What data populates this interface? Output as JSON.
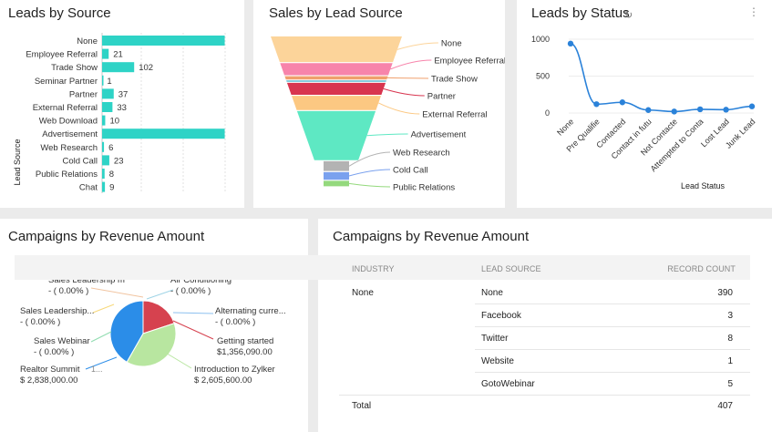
{
  "leads_by_source": {
    "title": "Leads by Source",
    "y_axis_label": "Lead Source",
    "chart_data": {
      "type": "bar",
      "orientation": "horizontal",
      "title": "Leads by Source",
      "ylabel": "Lead Source",
      "categories": [
        "None",
        "Employee Referral",
        "Trade Show",
        "Seminar Partner",
        "Partner",
        "External Referral",
        "Web Download",
        "Advertisement",
        "Web Research",
        "Cold Call",
        "Public Relations",
        "Chat"
      ],
      "values": [
        390,
        21,
        102,
        1,
        37,
        33,
        10,
        390,
        6,
        23,
        8,
        9
      ],
      "value_labels": [
        "",
        "21",
        "102",
        "1",
        "37",
        "33",
        "10",
        "",
        "6",
        "23",
        "8",
        "9"
      ],
      "xlim": [
        0,
        400
      ],
      "color": "#2ed3c6"
    }
  },
  "sales_by_lead_source": {
    "title": "Sales by Lead Source",
    "chart_data": {
      "type": "funnel",
      "title": "Sales by Lead Source",
      "categories": [
        "None",
        "Employee Referral",
        "Trade Show",
        "",
        "Partner",
        "External Referral",
        "Advertisement",
        "Web Research",
        "Cold Call",
        "Public Relations"
      ],
      "values": [
        12,
        6,
        2,
        1,
        6,
        7,
        23,
        5,
        4,
        3
      ],
      "colors": [
        "#fcd49a",
        "#f784ab",
        "#f0a06d",
        "#3fb0c9",
        "#d8354f",
        "#fcc882",
        "#5ee8c3",
        "#b3b3b3",
        "#7aa1ee",
        "#94d97d"
      ]
    }
  },
  "leads_by_status": {
    "title": "Leads by Status",
    "refresh_icon": "refresh-icon",
    "menu_icon": "more-vertical-icon",
    "x_axis_label": "Lead Status",
    "chart_data": {
      "type": "line",
      "title": "Leads by Status",
      "xlabel": "Lead Status",
      "x": [
        "None",
        "Pre Qualifie",
        "Contacted",
        "Contact in futu",
        "Not Contacte",
        "Attempted to Conta",
        "Lost Lead",
        "Junk Lead"
      ],
      "values": [
        940,
        120,
        145,
        40,
        20,
        50,
        45,
        90
      ],
      "y_ticks": [
        "1000",
        "500",
        "0"
      ],
      "ylim": [
        0,
        1000
      ],
      "grid": true,
      "color": "#2b82d9"
    }
  },
  "campaigns_pie": {
    "title": "Campaigns by Revenue Amount",
    "chart_data": {
      "type": "pie",
      "title": "Campaigns by Revenue Amount",
      "slices": [
        {
          "name": "Realtor Summit",
          "value": 2838000,
          "label": "$ 2,838,000.00",
          "color": "#2b8de8"
        },
        {
          "name": "Introduction to Zylker",
          "value": 2605600,
          "label": "$ 2,605,600.00",
          "color": "#b8e6a0"
        },
        {
          "name": "Getting started",
          "value": 1356090,
          "label": "$1,356,090.00",
          "color": "#d6424f"
        },
        {
          "name": "Sales Leadership m",
          "value": 0,
          "label": "- ( 0.00% )",
          "color": "#f1c4a0"
        },
        {
          "name": "Air Conditioning",
          "value": 0,
          "label": "- ( 0.00% )",
          "color": "#9fd4e6"
        },
        {
          "name": "Alternating curre...",
          "value": 0,
          "label": "- ( 0.00% )",
          "color": "#8cc0ef"
        },
        {
          "name": "Sales Leadership...",
          "value": 0,
          "label": "- ( 0.00% )",
          "color": "#f7d87a"
        },
        {
          "name": "Sales Webinar",
          "value": 0,
          "label": "- ( 0.00% )",
          "color": "#8fdcb0"
        }
      ],
      "extra_text": "1..."
    }
  },
  "campaigns_table": {
    "title": "Campaigns by Revenue Amount",
    "headers": {
      "industry": "INDUSTRY",
      "lead_source": "LEAD SOURCE",
      "record_count": "RECORD COUNT"
    },
    "industry_value": "None",
    "rows": [
      {
        "source": "None",
        "count": "390"
      },
      {
        "source": "Facebook",
        "count": "3"
      },
      {
        "source": "Twitter",
        "count": "8"
      },
      {
        "source": "Website",
        "count": "1"
      },
      {
        "source": "GotoWebinar",
        "count": "5"
      }
    ],
    "total_label": "Total",
    "total_value": "407"
  }
}
